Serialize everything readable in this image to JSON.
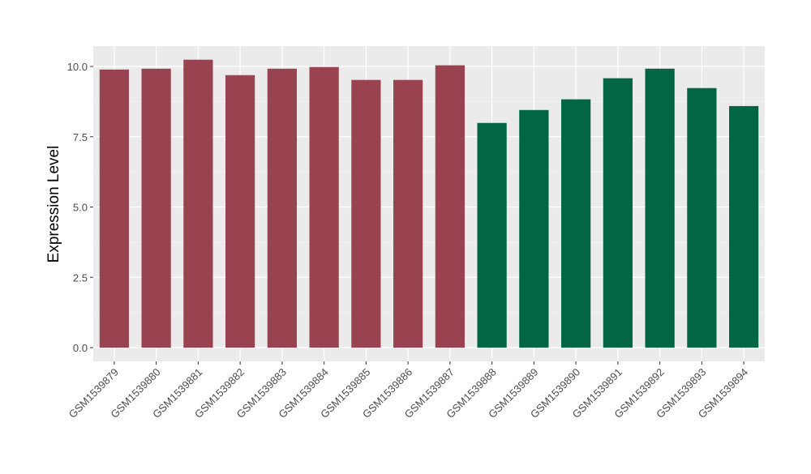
{
  "chart_data": {
    "type": "bar",
    "title": "",
    "xlabel": "",
    "ylabel": "Expression Level",
    "ylim": [
      0,
      10.7
    ],
    "yticks": [
      0,
      2.5,
      5,
      7.5,
      10
    ],
    "ytick_labels": [
      "0.0",
      "2.5",
      "5.0",
      "7.5",
      "10.0"
    ],
    "grid": true,
    "legend": "none",
    "categories": [
      "GSM1539879",
      "GSM1539880",
      "GSM1539881",
      "GSM1539882",
      "GSM1539883",
      "GSM1539884",
      "GSM1539885",
      "GSM1539886",
      "GSM1539887",
      "GSM1539888",
      "GSM1539889",
      "GSM1539890",
      "GSM1539891",
      "GSM1539892",
      "GSM1539893",
      "GSM1539894"
    ],
    "values": [
      9.89,
      9.92,
      10.24,
      9.69,
      9.92,
      9.98,
      9.52,
      9.52,
      10.04,
      7.99,
      8.45,
      8.83,
      9.58,
      9.92,
      9.23,
      8.59
    ],
    "groups": [
      0,
      0,
      0,
      0,
      0,
      0,
      0,
      0,
      0,
      1,
      1,
      1,
      1,
      1,
      1,
      1
    ],
    "colors": [
      "#994350",
      "#026645"
    ],
    "panel_bg": "#ebebeb"
  }
}
